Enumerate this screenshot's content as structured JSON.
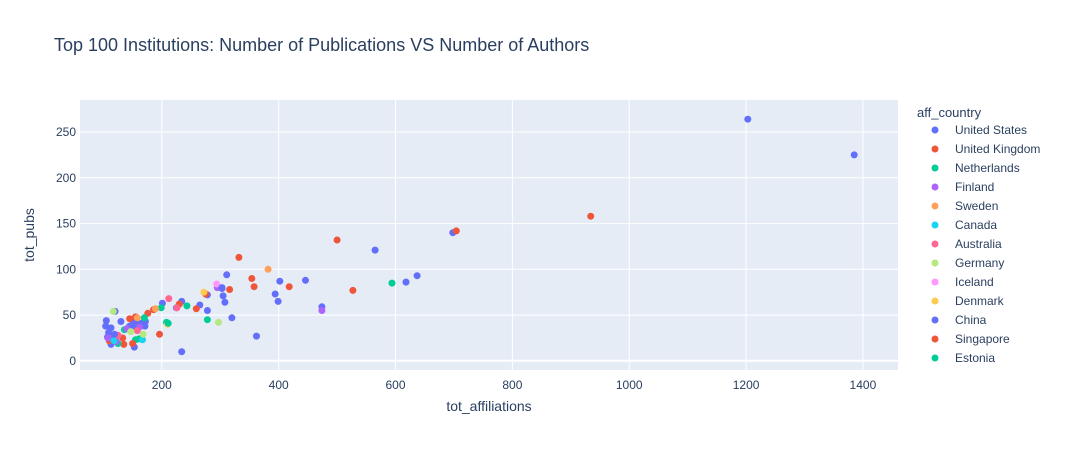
{
  "chart_data": {
    "type": "scatter",
    "title": "Top 100 Institutions: Number of Publications VS Number of Authors",
    "xlabel": "tot_affiliations",
    "ylabel": "tot_pubs",
    "xlim": [
      60,
      1460
    ],
    "ylim": [
      -10,
      285
    ],
    "xticks": [
      200,
      400,
      600,
      800,
      1000,
      1200,
      1400
    ],
    "yticks": [
      0,
      50,
      100,
      150,
      200,
      250
    ],
    "grid": true,
    "legend_title": "aff_country",
    "legend_position": "right",
    "series": [
      {
        "name": "United States",
        "color": "#636efa",
        "points": [
          [
            1203,
            264
          ],
          [
            1385,
            225
          ],
          [
            698,
            140
          ],
          [
            565,
            121
          ],
          [
            446,
            88
          ],
          [
            402,
            87
          ],
          [
            394,
            73
          ],
          [
            399,
            65
          ],
          [
            474,
            59
          ],
          [
            618,
            86
          ],
          [
            637,
            93
          ],
          [
            362,
            27
          ],
          [
            320,
            47
          ],
          [
            311,
            94
          ],
          [
            303,
            79
          ],
          [
            305,
            71
          ],
          [
            308,
            64
          ],
          [
            278,
            55
          ],
          [
            278,
            72
          ],
          [
            265,
            61
          ],
          [
            234,
            65
          ],
          [
            225,
            58
          ],
          [
            201,
            63
          ],
          [
            234,
            10
          ],
          [
            172,
            43
          ],
          [
            165,
            41
          ],
          [
            152,
            36
          ],
          [
            150,
            44
          ],
          [
            130,
            43
          ],
          [
            120,
            54
          ],
          [
            113,
            36
          ],
          [
            109,
            31
          ],
          [
            107,
            26
          ],
          [
            117,
            25
          ],
          [
            113,
            18
          ],
          [
            105,
            44
          ],
          [
            104,
            38
          ],
          [
            153,
            15
          ],
          [
            171,
            38
          ],
          [
            155,
            42
          ],
          [
            145,
            38
          ]
        ]
      },
      {
        "name": "United Kingdom",
        "color": "#ef553b",
        "points": [
          [
            704,
            142
          ],
          [
            934,
            158
          ],
          [
            500,
            132
          ],
          [
            332,
            113
          ],
          [
            354,
            90
          ],
          [
            418,
            81
          ],
          [
            358,
            81
          ],
          [
            527,
            77
          ],
          [
            316,
            78
          ],
          [
            275,
            73
          ],
          [
            259,
            57
          ],
          [
            186,
            56
          ],
          [
            176,
            52
          ],
          [
            230,
            62
          ],
          [
            196,
            29
          ],
          [
            155,
            48
          ],
          [
            145,
            46
          ],
          [
            135,
            18
          ],
          [
            110,
            22
          ],
          [
            121,
            23
          ],
          [
            133,
            25
          ]
        ]
      },
      {
        "name": "Netherlands",
        "color": "#00cc96",
        "points": [
          [
            594,
            85
          ],
          [
            278,
            45
          ],
          [
            243,
            60
          ],
          [
            208,
            42
          ],
          [
            199,
            58
          ],
          [
            170,
            47
          ],
          [
            161,
            24
          ],
          [
            136,
            34
          ],
          [
            125,
            19
          ],
          [
            155,
            23
          ]
        ]
      },
      {
        "name": "Finland",
        "color": "#ab63fa",
        "points": [
          [
            474,
            55
          ],
          [
            295,
            80
          ],
          [
            162,
            37
          ],
          [
            122,
            21
          ],
          [
            140,
            35
          ],
          [
            108,
            25
          ]
        ]
      },
      {
        "name": "Sweden",
        "color": "#ffa15a",
        "points": [
          [
            382,
            100
          ],
          [
            189,
            57
          ],
          [
            158,
            47
          ]
        ]
      },
      {
        "name": "Canada",
        "color": "#19d3f3",
        "points": [
          [
            167,
            23
          ],
          [
            118,
            22
          ]
        ]
      },
      {
        "name": "Australia",
        "color": "#ff6692",
        "points": [
          [
            212,
            68
          ],
          [
            226,
            58
          ],
          [
            158,
            33
          ],
          [
            125,
            28
          ]
        ]
      },
      {
        "name": "Germany",
        "color": "#b6e880",
        "points": [
          [
            297,
            42
          ],
          [
            168,
            29
          ],
          [
            117,
            54
          ],
          [
            147,
            32
          ]
        ]
      },
      {
        "name": "Iceland",
        "color": "#ff97ff",
        "points": [
          [
            294,
            84
          ]
        ]
      },
      {
        "name": "Denmark",
        "color": "#fecb52",
        "points": [
          [
            272,
            75
          ],
          [
            210,
            40
          ]
        ]
      },
      {
        "name": "China",
        "color": "#636efa",
        "points": [
          [
            303,
            80
          ],
          [
            119,
            29
          ]
        ]
      },
      {
        "name": "Singapore",
        "color": "#ef553b",
        "points": [
          [
            150,
            19
          ]
        ]
      },
      {
        "name": "Estonia",
        "color": "#00cc96",
        "points": [
          [
            211,
            41
          ]
        ]
      }
    ]
  }
}
